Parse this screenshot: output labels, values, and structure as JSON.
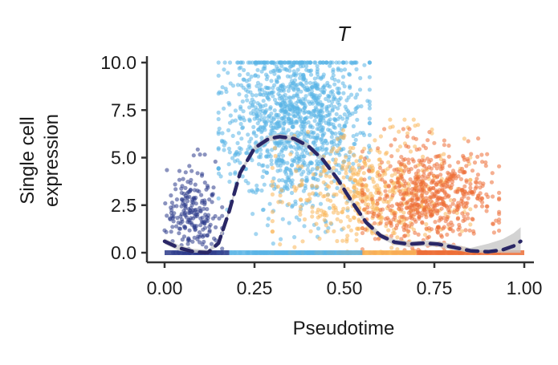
{
  "chart_data": {
    "type": "scatter",
    "title": "T",
    "xlabel": "Pseudotime",
    "ylabel_lines": [
      "Single cell",
      "expression"
    ],
    "xlim": [
      0.0,
      1.0
    ],
    "ylim": [
      0.0,
      10.0
    ],
    "x_ticks": [
      0.0,
      0.25,
      0.5,
      0.75,
      1.0
    ],
    "x_tick_labels": [
      "0.00",
      "0.25",
      "0.50",
      "0.75",
      "1.00"
    ],
    "y_ticks": [
      0.0,
      2.5,
      5.0,
      7.5,
      10.0
    ],
    "y_tick_labels": [
      "0.0",
      "2.5",
      "5.0",
      "7.5",
      "10.0"
    ],
    "grid": false,
    "legend": "none",
    "clusters": [
      {
        "color": "#2b3a8a",
        "x_range": [
          0.0,
          0.16
        ],
        "y_range": [
          0.0,
          5.5
        ],
        "y_center": 2.2,
        "n": 240
      },
      {
        "color": "#5ab4e5",
        "x_range": [
          0.15,
          0.57
        ],
        "y_range": [
          0.0,
          10.0
        ],
        "y_center": 7.0,
        "n": 1400
      },
      {
        "color": "#f9b65a",
        "x_range": [
          0.3,
          0.85
        ],
        "y_range": [
          0.0,
          7.0
        ],
        "y_center": 3.0,
        "n": 600
      },
      {
        "color": "#ec6e37",
        "x_range": [
          0.55,
          0.93
        ],
        "y_range": [
          0.0,
          6.5
        ],
        "y_center": 2.8,
        "n": 700
      }
    ],
    "trend_line": {
      "style": "dashed",
      "color": "#2a2766",
      "x": [
        0.0,
        0.04,
        0.08,
        0.12,
        0.15,
        0.18,
        0.21,
        0.25,
        0.29,
        0.32,
        0.36,
        0.4,
        0.44,
        0.48,
        0.52,
        0.56,
        0.6,
        0.64,
        0.68,
        0.72,
        0.76,
        0.8,
        0.85,
        0.9,
        0.94,
        0.97,
        0.99
      ],
      "y": [
        0.6,
        0.25,
        0.05,
        0.0,
        0.5,
        2.2,
        4.2,
        5.5,
        6.0,
        6.1,
        6.0,
        5.6,
        4.9,
        3.9,
        2.7,
        1.6,
        0.9,
        0.55,
        0.45,
        0.5,
        0.45,
        0.3,
        0.1,
        0.05,
        0.15,
        0.35,
        0.6
      ],
      "ci_band_color": "#c8c8c8"
    }
  }
}
